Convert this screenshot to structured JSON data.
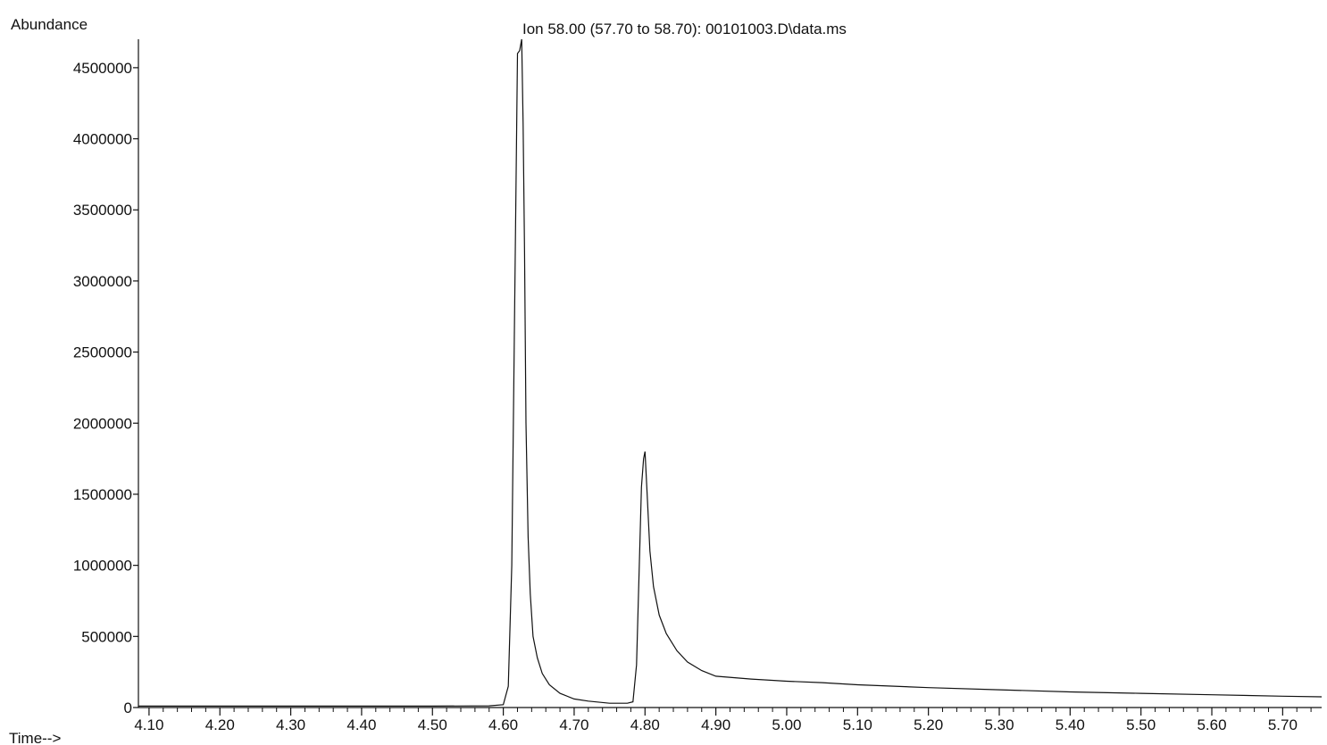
{
  "chart_data": {
    "type": "line",
    "title": "Ion  58.00 (57.70 to 58.70): 00101003.D\\data.ms",
    "ylabel": "Abundance",
    "xlabel": "Time-->",
    "xlim": [
      4.085,
      5.755
    ],
    "ylim": [
      0,
      4700000
    ],
    "x_major_ticks": [
      4.1,
      4.2,
      4.3,
      4.4,
      4.5,
      4.6,
      4.7,
      4.8,
      4.9,
      5.0,
      5.1,
      5.2,
      5.3,
      5.4,
      5.5,
      5.6,
      5.7
    ],
    "x_tick_labels": [
      "4.10",
      "4.20",
      "4.30",
      "4.40",
      "4.50",
      "4.60",
      "4.70",
      "4.80",
      "4.90",
      "5.00",
      "5.10",
      "5.20",
      "5.30",
      "5.40",
      "5.50",
      "5.60",
      "5.70"
    ],
    "y_ticks": [
      0,
      500000,
      1000000,
      1500000,
      2000000,
      2500000,
      3000000,
      3500000,
      4000000,
      4500000
    ],
    "y_tick_labels": [
      "0",
      "500000",
      "1000000",
      "1500000",
      "2000000",
      "2500000",
      "3000000",
      "3500000",
      "4000000",
      "4500000"
    ],
    "grid": false,
    "series": [
      {
        "color": "#111111",
        "x": [
          4.085,
          4.2,
          4.3,
          4.4,
          4.5,
          4.58,
          4.6,
          4.607,
          4.612,
          4.616,
          4.62,
          4.623,
          4.626,
          4.628,
          4.63,
          4.632,
          4.635,
          4.638,
          4.642,
          4.648,
          4.655,
          4.665,
          4.68,
          4.7,
          4.72,
          4.75,
          4.775,
          4.783,
          4.788,
          4.792,
          4.795,
          4.798,
          4.8,
          4.803,
          4.807,
          4.812,
          4.82,
          4.83,
          4.845,
          4.86,
          4.88,
          4.9,
          4.95,
          5.0,
          5.05,
          5.1,
          5.2,
          5.3,
          5.4,
          5.5,
          5.6,
          5.7,
          5.755
        ],
        "y": [
          10000,
          10000,
          10000,
          10000,
          10000,
          12000,
          20000,
          150000,
          1000000,
          2800000,
          4600000,
          4620000,
          4700000,
          4100000,
          3200000,
          2000000,
          1200000,
          800000,
          500000,
          350000,
          240000,
          160000,
          100000,
          60000,
          45000,
          30000,
          30000,
          40000,
          300000,
          1000000,
          1550000,
          1750000,
          1800000,
          1500000,
          1100000,
          850000,
          650000,
          520000,
          400000,
          320000,
          260000,
          220000,
          200000,
          185000,
          175000,
          160000,
          140000,
          125000,
          110000,
          100000,
          90000,
          80000,
          75000
        ]
      }
    ]
  }
}
